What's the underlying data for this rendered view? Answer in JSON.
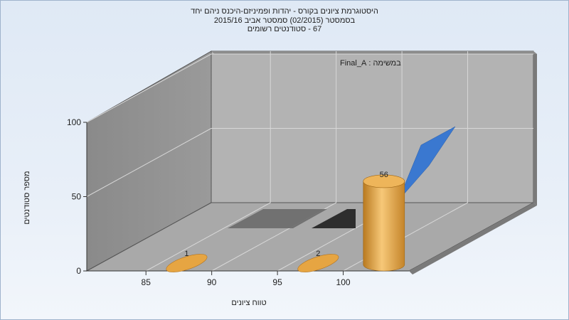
{
  "chart_data": {
    "type": "bar",
    "title_lines": [
      "היסטוגרמת ציונים בקורס - יהדות ופמיניזם-היכנס ניהם יחד",
      "בסמסטר  (02/2015)  סמסטר אביב 2015/16",
      "67 - סטודנטים רשומים"
    ],
    "annotation": "במשימה : Final_A",
    "xlabel": "טווח ציונים",
    "ylabel": "מספר סטודנטים",
    "x_ticks": [
      85,
      90,
      95,
      100
    ],
    "y_ticks": [
      0,
      50,
      100
    ],
    "ylim": [
      0,
      100
    ],
    "xlim": [
      80.5,
      105
    ],
    "bars": [
      {
        "x": 87.5,
        "value": 1,
        "label": "1"
      },
      {
        "x": 97.5,
        "value": 2,
        "label": "2"
      },
      {
        "x": 102.5,
        "value": 56,
        "label": "56"
      }
    ],
    "bar_color": "#e0a040",
    "back_series_color": "#3a78d0",
    "mid_series_color": "#5a5a5a",
    "grid": true
  }
}
